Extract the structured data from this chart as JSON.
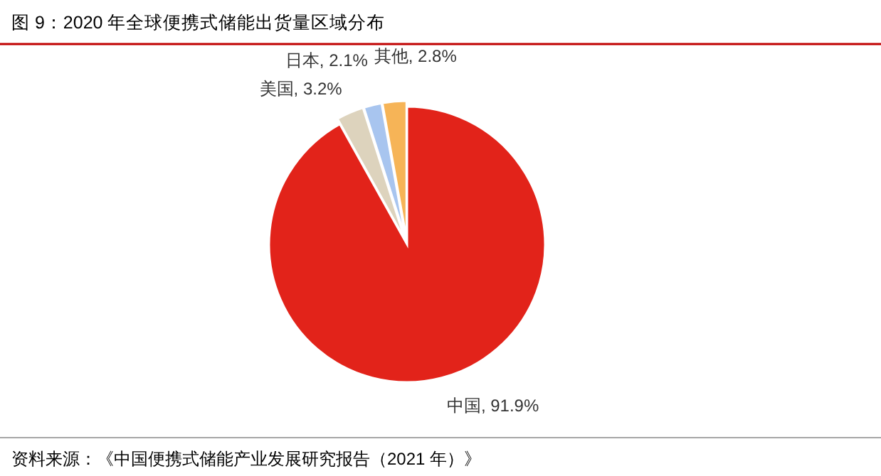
{
  "chart_data": {
    "type": "pie",
    "title": "图 9：2020 年全球便携式储能出货量区域分布",
    "categories": [
      "中国",
      "美国",
      "日本",
      "其他"
    ],
    "values": [
      91.9,
      3.2,
      2.1,
      2.8
    ],
    "colors": [
      "#e2231a",
      "#ddd3bd",
      "#a8c5ef",
      "#f6b457"
    ],
    "value_labels": [
      ", 91.9%",
      ", 3.2%",
      ", 2.1%",
      ", 2.8%"
    ],
    "annotations": [
      "资料来源：《中国便携式储能产业发展研究报告（2021 年）》"
    ]
  }
}
